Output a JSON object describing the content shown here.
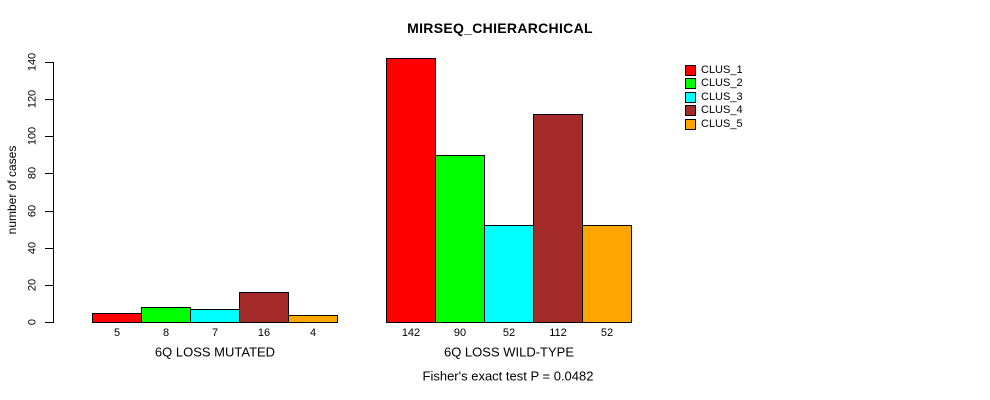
{
  "title": "MIRSEQ_CHIERARCHICAL",
  "chart_data": {
    "type": "bar",
    "title": "MIRSEQ_CHIERARCHICAL",
    "ylabel": "number of cases",
    "xlabel": "",
    "ylim": [
      0,
      140
    ],
    "yticks": [
      0,
      20,
      40,
      60,
      80,
      100,
      120,
      140
    ],
    "grid": false,
    "legend_position": "right",
    "categories": [
      "6Q LOSS MUTATED",
      "6Q LOSS WILD-TYPE"
    ],
    "series": [
      {
        "name": "CLUS_1",
        "color": "#FF0000",
        "values": [
          5,
          142
        ]
      },
      {
        "name": "CLUS_2",
        "color": "#00FF00",
        "values": [
          8,
          90
        ]
      },
      {
        "name": "CLUS_3",
        "color": "#00FFFF",
        "values": [
          7,
          52
        ]
      },
      {
        "name": "CLUS_4",
        "color": "#A52A2A",
        "values": [
          16,
          112
        ]
      },
      {
        "name": "CLUS_5",
        "color": "#FFA500",
        "values": [
          4,
          52
        ]
      }
    ],
    "bar_value_labels": [
      [
        "5",
        "8",
        "7",
        "16",
        "4"
      ],
      [
        "142",
        "90",
        "52",
        "112",
        "52"
      ]
    ],
    "annotation": "Fisher's exact test P = 0.0482",
    "axis_color": "#000000",
    "bar_border_color": "#000000"
  },
  "legend": {
    "entries": [
      {
        "label": "CLUS_1",
        "color": "#FF0000"
      },
      {
        "label": "CLUS_2",
        "color": "#00FF00"
      },
      {
        "label": "CLUS_3",
        "color": "#00FFFF"
      },
      {
        "label": "CLUS_4",
        "color": "#A52A2A"
      },
      {
        "label": "CLUS_5",
        "color": "#FFA500"
      }
    ]
  },
  "footer": "Fisher's exact test P = 0.0482"
}
